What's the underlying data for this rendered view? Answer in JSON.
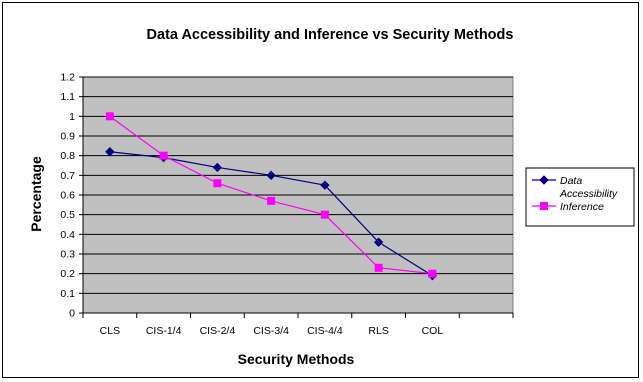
{
  "chart_data": {
    "type": "line",
    "title": "Data Accessibility and Inference vs Security Methods",
    "xlabel": "Security Methods",
    "ylabel": "Percentage",
    "categories": [
      "CLS",
      "CIS-1/4",
      "CIS-2/4",
      "CIS-3/4",
      "CIS-4/4",
      "RLS",
      "COL"
    ],
    "ylim": [
      0,
      1.2
    ],
    "yticks": [
      "0",
      "0.1",
      "0.2",
      "0.3",
      "0.4",
      "0.5",
      "0.6",
      "0.7",
      "0.8",
      "0.9",
      "1",
      "1.1",
      "1.2"
    ],
    "grid": true,
    "legend_position": "right",
    "plot_background": "#c0c0c0",
    "series": [
      {
        "name_lines": [
          "Data",
          "Accessibility"
        ],
        "color": "#000080",
        "marker": "diamond",
        "values": [
          0.82,
          0.79,
          0.74,
          0.7,
          0.65,
          0.36,
          0.19
        ]
      },
      {
        "name_lines": [
          "Inference"
        ],
        "color": "#ff00ff",
        "marker": "square",
        "values": [
          1.0,
          0.8,
          0.66,
          0.57,
          0.5,
          0.23,
          0.2
        ]
      }
    ]
  }
}
